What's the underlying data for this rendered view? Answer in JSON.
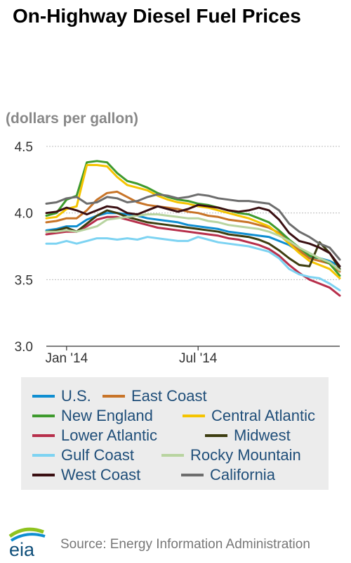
{
  "title": "On-Highway Diesel Fuel Prices",
  "units": "(dollars per gallon)",
  "source": "Source: Energy Information Administration",
  "logo_text": "eia",
  "chart_data": {
    "type": "line",
    "title": "On-Highway Diesel Fuel Prices",
    "ylabel": "(dollars per gallon)",
    "xlabel": "",
    "ylim": [
      3.0,
      4.5
    ],
    "y_ticks": [
      "3.0",
      "3.5",
      "4.0",
      "4.5"
    ],
    "x_ticks": [
      {
        "label": "Jan '14",
        "x": 2.0
      },
      {
        "label": "Jul '14",
        "x": 28.0
      }
    ],
    "xlim": [
      -2,
      56
    ],
    "grid": "horizontal dashed",
    "legend_position": "bottom",
    "x": [
      -2,
      0,
      2,
      4,
      6,
      8,
      10,
      12,
      14,
      16,
      18,
      20,
      22,
      24,
      26,
      28,
      30,
      32,
      34,
      36,
      38,
      40,
      42,
      44,
      46,
      48,
      50,
      52,
      54,
      56
    ],
    "series": [
      {
        "name": "U.S.",
        "color": "#0f8ed1",
        "values": [
          3.87,
          3.88,
          3.9,
          3.9,
          3.95,
          3.98,
          4.0,
          4.0,
          3.99,
          3.98,
          3.96,
          3.95,
          3.94,
          3.93,
          3.91,
          3.9,
          3.89,
          3.88,
          3.86,
          3.85,
          3.84,
          3.83,
          3.82,
          3.79,
          3.76,
          3.71,
          3.67,
          3.66,
          3.64,
          3.6
        ]
      },
      {
        "name": "East Coast",
        "color": "#c87428",
        "values": [
          3.93,
          3.94,
          3.96,
          3.96,
          4.02,
          4.1,
          4.15,
          4.16,
          4.12,
          4.08,
          4.06,
          4.05,
          4.04,
          4.03,
          4.01,
          4.0,
          3.98,
          3.97,
          3.95,
          3.94,
          3.93,
          3.91,
          3.89,
          3.85,
          3.79,
          3.72,
          3.66,
          3.64,
          3.62,
          3.56
        ]
      },
      {
        "name": "New England",
        "color": "#3e9a2d",
        "values": [
          3.98,
          4.0,
          4.1,
          4.13,
          4.38,
          4.39,
          4.38,
          4.3,
          4.24,
          4.22,
          4.19,
          4.15,
          4.12,
          4.1,
          4.09,
          4.07,
          4.06,
          4.04,
          4.02,
          4.0,
          3.99,
          3.96,
          3.93,
          3.87,
          3.8,
          3.74,
          3.68,
          3.66,
          3.62,
          3.53
        ]
      },
      {
        "name": "Central Atlantic",
        "color": "#f5c400",
        "values": [
          3.96,
          3.97,
          4.03,
          4.05,
          4.36,
          4.36,
          4.35,
          4.27,
          4.21,
          4.19,
          4.17,
          4.13,
          4.1,
          4.08,
          4.07,
          4.05,
          4.04,
          4.02,
          4.0,
          3.98,
          3.96,
          3.93,
          3.9,
          3.84,
          3.77,
          3.7,
          3.64,
          3.61,
          3.58,
          3.51
        ]
      },
      {
        "name": "Lower Atlantic",
        "color": "#b72f4b",
        "values": [
          3.84,
          3.85,
          3.86,
          3.86,
          3.9,
          3.95,
          3.97,
          3.97,
          3.95,
          3.93,
          3.91,
          3.89,
          3.88,
          3.87,
          3.86,
          3.85,
          3.84,
          3.83,
          3.81,
          3.8,
          3.78,
          3.76,
          3.73,
          3.68,
          3.61,
          3.55,
          3.5,
          3.47,
          3.44,
          3.38
        ]
      },
      {
        "name": "Midwest",
        "color": "#3d3d10",
        "values": [
          3.86,
          3.87,
          3.89,
          3.86,
          3.92,
          3.98,
          4.02,
          4.0,
          3.97,
          3.95,
          3.93,
          3.92,
          3.91,
          3.9,
          3.89,
          3.88,
          3.87,
          3.86,
          3.84,
          3.83,
          3.82,
          3.8,
          3.77,
          3.72,
          3.66,
          3.61,
          3.6,
          3.78,
          3.7,
          3.58
        ]
      },
      {
        "name": "Gulf Coast",
        "color": "#7dd3f2",
        "values": [
          3.77,
          3.77,
          3.79,
          3.77,
          3.79,
          3.81,
          3.81,
          3.8,
          3.81,
          3.8,
          3.82,
          3.81,
          3.8,
          3.79,
          3.79,
          3.82,
          3.8,
          3.78,
          3.77,
          3.76,
          3.75,
          3.73,
          3.71,
          3.66,
          3.58,
          3.54,
          3.52,
          3.51,
          3.47,
          3.42
        ]
      },
      {
        "name": "Rocky Mountain",
        "color": "#b8d4a0",
        "values": [
          3.86,
          3.86,
          3.87,
          3.86,
          3.88,
          3.9,
          3.95,
          3.96,
          3.97,
          3.98,
          3.99,
          3.99,
          3.98,
          3.97,
          3.96,
          3.96,
          3.94,
          3.93,
          3.91,
          3.9,
          3.89,
          3.88,
          3.86,
          3.83,
          3.79,
          3.74,
          3.7,
          3.66,
          3.63,
          3.57
        ]
      },
      {
        "name": "West Coast",
        "color": "#3a0f12",
        "values": [
          4.0,
          4.01,
          4.04,
          4.02,
          3.99,
          4.02,
          4.05,
          4.04,
          4.0,
          3.99,
          4.02,
          4.05,
          4.03,
          4.01,
          4.03,
          4.06,
          4.05,
          4.04,
          4.02,
          4.01,
          4.02,
          4.04,
          4.02,
          3.95,
          3.85,
          3.79,
          3.77,
          3.74,
          3.7,
          3.6
        ]
      },
      {
        "name": "California",
        "color": "#6d6d6d",
        "values": [
          4.07,
          4.08,
          4.11,
          4.12,
          4.07,
          4.08,
          4.12,
          4.11,
          4.08,
          4.09,
          4.12,
          4.14,
          4.13,
          4.11,
          4.12,
          4.14,
          4.13,
          4.11,
          4.1,
          4.09,
          4.09,
          4.08,
          4.07,
          4.02,
          3.92,
          3.86,
          3.82,
          3.77,
          3.74,
          3.65
        ]
      }
    ]
  }
}
